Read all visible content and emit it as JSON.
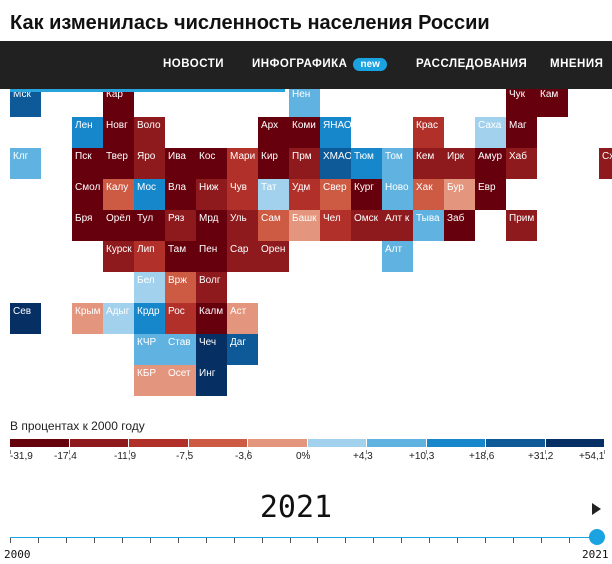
{
  "title": "Как изменилась численность населения России",
  "nav": {
    "items": [
      "НОВОСТИ",
      "ИНФОГРАФИКА",
      "РАССЛЕДОВАНИЯ",
      "МНЕНИЯ"
    ],
    "badge": "new"
  },
  "legend": {
    "title": "В процентах к 2000 году",
    "labels": [
      "-31,9",
      "-17,4",
      "-11,9",
      "-7,5",
      "-3,6",
      "0%",
      "+4,3",
      "+10,3",
      "+18,6",
      "+31,2",
      "+54,1"
    ],
    "colors": [
      "#67000d",
      "#8e1a1d",
      "#b2302a",
      "#cd5a43",
      "#e3957d",
      "#a2d1ee",
      "#60b3e0",
      "#1787cc",
      "#0e5a99",
      "#062f63"
    ]
  },
  "slider": {
    "year": "2021",
    "start": "2000",
    "end": "2021",
    "value": 21,
    "min": 0,
    "max": 21
  },
  "regions": [
    {
      "label": "Мск",
      "row": 0,
      "col": 0,
      "level": 8
    },
    {
      "label": "Кар",
      "row": 0,
      "col": 3,
      "level": 0
    },
    {
      "label": "Нен",
      "row": 0,
      "col": 9,
      "level": 6
    },
    {
      "label": "Чук",
      "row": 0,
      "col": 16,
      "level": 0
    },
    {
      "label": "Кам",
      "row": 0,
      "col": 17,
      "level": 0
    },
    {
      "label": "Лен",
      "row": 1,
      "col": 2,
      "level": 7
    },
    {
      "label": "Новг",
      "row": 1,
      "col": 3,
      "level": 0
    },
    {
      "label": "Воло",
      "row": 1,
      "col": 4,
      "level": 1
    },
    {
      "label": "Арх",
      "row": 1,
      "col": 8,
      "level": 0
    },
    {
      "label": "Коми",
      "row": 1,
      "col": 9,
      "level": 0
    },
    {
      "label": "ЯНАО",
      "row": 1,
      "col": 10,
      "level": 7
    },
    {
      "label": "Крас",
      "row": 1,
      "col": 13,
      "level": 2
    },
    {
      "label": "Саха",
      "row": 1,
      "col": 15,
      "level": 5
    },
    {
      "label": "Маг",
      "row": 1,
      "col": 16,
      "level": 0
    },
    {
      "label": "Клг",
      "row": 2,
      "col": 0,
      "level": 6
    },
    {
      "label": "Пск",
      "row": 2,
      "col": 2,
      "level": 0
    },
    {
      "label": "Твер",
      "row": 2,
      "col": 3,
      "level": 0
    },
    {
      "label": "Яро",
      "row": 2,
      "col": 4,
      "level": 1
    },
    {
      "label": "Ива",
      "row": 2,
      "col": 5,
      "level": 0
    },
    {
      "label": "Кос",
      "row": 2,
      "col": 6,
      "level": 0
    },
    {
      "label": "Мари",
      "row": 2,
      "col": 7,
      "level": 2
    },
    {
      "label": "Кир",
      "row": 2,
      "col": 8,
      "level": 0
    },
    {
      "label": "Прм",
      "row": 2,
      "col": 9,
      "level": 1
    },
    {
      "label": "ХМАО",
      "row": 2,
      "col": 10,
      "level": 8
    },
    {
      "label": "Тюм",
      "row": 2,
      "col": 11,
      "level": 7
    },
    {
      "label": "Том",
      "row": 2,
      "col": 12,
      "level": 6
    },
    {
      "label": "Кем",
      "row": 2,
      "col": 13,
      "level": 1
    },
    {
      "label": "Ирк",
      "row": 2,
      "col": 14,
      "level": 1
    },
    {
      "label": "Амур",
      "row": 2,
      "col": 15,
      "level": 0
    },
    {
      "label": "Хаб",
      "row": 2,
      "col": 16,
      "level": 1
    },
    {
      "label": "Схлн",
      "row": 2,
      "col": 19,
      "level": 1
    },
    {
      "label": "Смол",
      "row": 3,
      "col": 2,
      "level": 0
    },
    {
      "label": "Калу",
      "row": 3,
      "col": 3,
      "level": 3
    },
    {
      "label": "Мос",
      "row": 3,
      "col": 4,
      "level": 7
    },
    {
      "label": "Вла",
      "row": 3,
      "col": 5,
      "level": 0
    },
    {
      "label": "Ниж",
      "row": 3,
      "col": 6,
      "level": 1
    },
    {
      "label": "Чув",
      "row": 3,
      "col": 7,
      "level": 2
    },
    {
      "label": "Тат",
      "row": 3,
      "col": 8,
      "level": 5
    },
    {
      "label": "Удм",
      "row": 3,
      "col": 9,
      "level": 2
    },
    {
      "label": "Свер",
      "row": 3,
      "col": 10,
      "level": 3
    },
    {
      "label": "Кург",
      "row": 3,
      "col": 11,
      "level": 0
    },
    {
      "label": "Ново",
      "row": 3,
      "col": 12,
      "level": 6
    },
    {
      "label": "Хак",
      "row": 3,
      "col": 13,
      "level": 3
    },
    {
      "label": "Бур",
      "row": 3,
      "col": 14,
      "level": 4
    },
    {
      "label": "Евр",
      "row": 3,
      "col": 15,
      "level": 0
    },
    {
      "label": "Бря",
      "row": 4,
      "col": 2,
      "level": 0
    },
    {
      "label": "Орёл",
      "row": 4,
      "col": 3,
      "level": 0
    },
    {
      "label": "Тул",
      "row": 4,
      "col": 4,
      "level": 0
    },
    {
      "label": "Ряз",
      "row": 4,
      "col": 5,
      "level": 1
    },
    {
      "label": "Мрд",
      "row": 4,
      "col": 6,
      "level": 0
    },
    {
      "label": "Уль",
      "row": 4,
      "col": 7,
      "level": 1
    },
    {
      "label": "Сам",
      "row": 4,
      "col": 8,
      "level": 3
    },
    {
      "label": "Башк",
      "row": 4,
      "col": 9,
      "level": 4
    },
    {
      "label": "Чел",
      "row": 4,
      "col": 10,
      "level": 2
    },
    {
      "label": "Омск",
      "row": 4,
      "col": 11,
      "level": 1
    },
    {
      "label": "Алт к",
      "row": 4,
      "col": 12,
      "level": 1
    },
    {
      "label": "Тыва",
      "row": 4,
      "col": 13,
      "level": 6
    },
    {
      "label": "Заб",
      "row": 4,
      "col": 14,
      "level": 0
    },
    {
      "label": "Прим",
      "row": 4,
      "col": 16,
      "level": 1
    },
    {
      "label": "Курск",
      "row": 5,
      "col": 3,
      "level": 1
    },
    {
      "label": "Лип",
      "row": 5,
      "col": 4,
      "level": 2
    },
    {
      "label": "Там",
      "row": 5,
      "col": 5,
      "level": 0
    },
    {
      "label": "Пен",
      "row": 5,
      "col": 6,
      "level": 0
    },
    {
      "label": "Сар",
      "row": 5,
      "col": 7,
      "level": 1
    },
    {
      "label": "Орен",
      "row": 5,
      "col": 8,
      "level": 1
    },
    {
      "label": "Алт",
      "row": 5,
      "col": 12,
      "level": 6
    },
    {
      "label": "Бел",
      "row": 6,
      "col": 4,
      "level": 5
    },
    {
      "label": "Врж",
      "row": 6,
      "col": 5,
      "level": 3
    },
    {
      "label": "Волг",
      "row": 6,
      "col": 6,
      "level": 1
    },
    {
      "label": "Сев",
      "row": 7,
      "col": 0,
      "level": 9
    },
    {
      "label": "Крым",
      "row": 7,
      "col": 2,
      "level": 4
    },
    {
      "label": "Адыг",
      "row": 7,
      "col": 3,
      "level": 5
    },
    {
      "label": "Крдр",
      "row": 7,
      "col": 4,
      "level": 7
    },
    {
      "label": "Рос",
      "row": 7,
      "col": 5,
      "level": 2
    },
    {
      "label": "Калм",
      "row": 7,
      "col": 6,
      "level": 0
    },
    {
      "label": "Аст",
      "row": 7,
      "col": 7,
      "level": 4
    },
    {
      "label": "КЧР",
      "row": 8,
      "col": 4,
      "level": 6
    },
    {
      "label": "Став",
      "row": 8,
      "col": 5,
      "level": 6
    },
    {
      "label": "Чеч",
      "row": 8,
      "col": 6,
      "level": 9
    },
    {
      "label": "Даг",
      "row": 8,
      "col": 7,
      "level": 8
    },
    {
      "label": "КБР",
      "row": 9,
      "col": 4,
      "level": 4
    },
    {
      "label": "Осет",
      "row": 9,
      "col": 5,
      "level": 4
    },
    {
      "label": "Инг",
      "row": 9,
      "col": 6,
      "level": 9
    }
  ]
}
